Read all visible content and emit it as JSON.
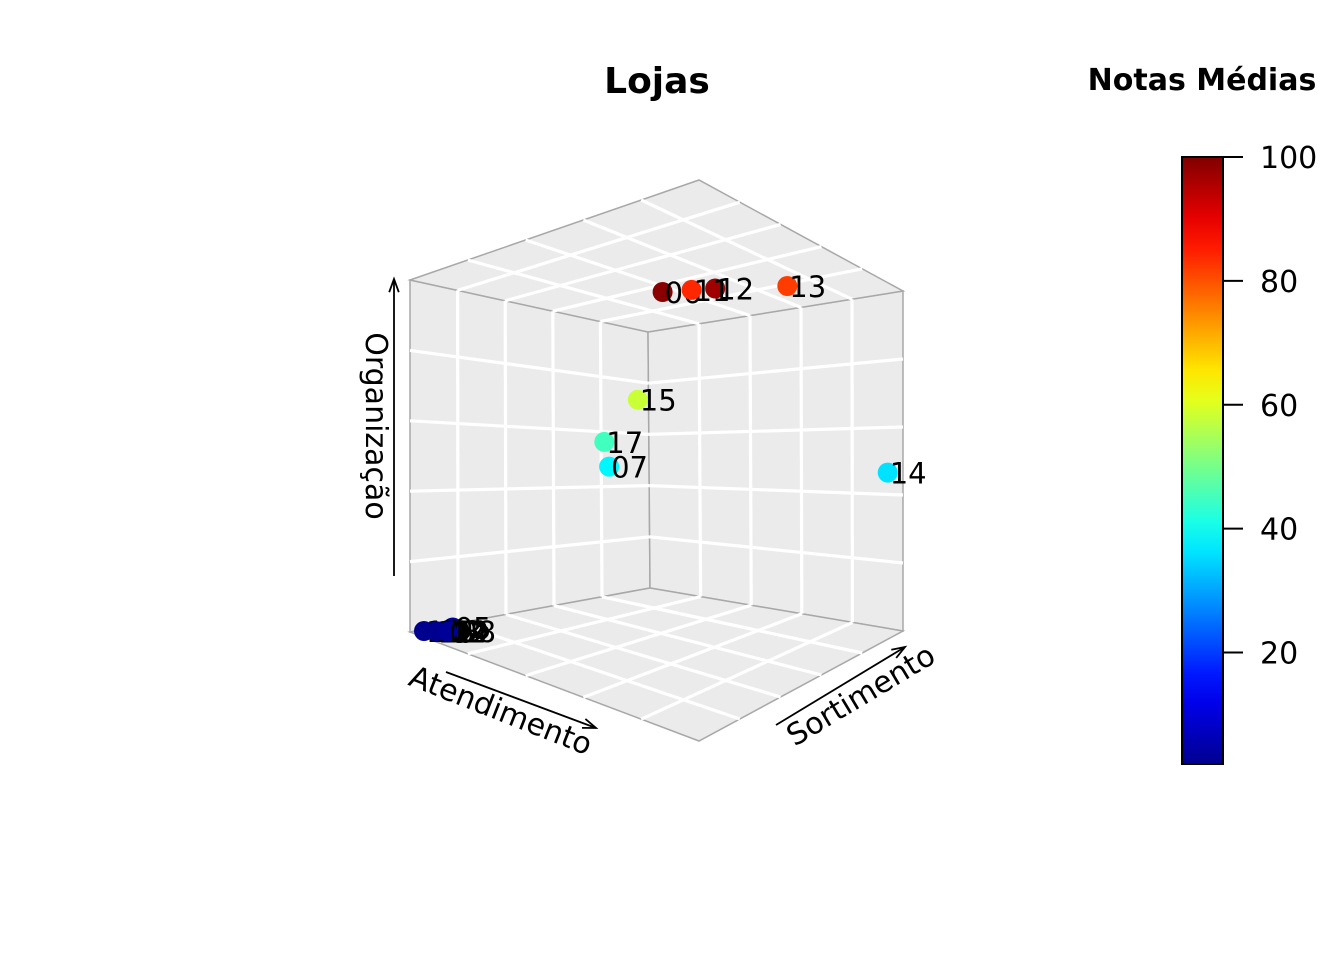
{
  "chart_data": {
    "type": "scatter",
    "title": "Lojas",
    "axes": {
      "x_label": "Atendimento",
      "y_label": "Sortimento",
      "z_label": "Organização"
    },
    "legend": {
      "title": "Notas Médias",
      "placement": "right",
      "min": 2,
      "max": 100,
      "ticks": [
        20,
        40,
        60,
        80,
        100
      ],
      "tick_labels": [
        "20",
        "40",
        "60",
        "80",
        "100"
      ],
      "colors": [
        "#00008f",
        "#0000ff",
        "#0080ff",
        "#00ffff",
        "#80ff80",
        "#ffff00",
        "#ff8000",
        "#ff0000",
        "#800000"
      ]
    },
    "grid": true,
    "points": [
      {
        "label": "06",
        "atendimento": 0.95,
        "sortimento": 0.05,
        "organizacao": 0.99,
        "nota": 99
      },
      {
        "label": "12",
        "atendimento": 0.95,
        "sortimento": 0.16,
        "organizacao": 1.0,
        "nota": 97
      },
      {
        "label": "11",
        "atendimento": 0.74,
        "sortimento": 0.21,
        "organizacao": 0.99,
        "nota": 84
      },
      {
        "label": "13",
        "atendimento": 0.0,
        "sortimento": 0.76,
        "organizacao": 0.98,
        "nota": 82
      },
      {
        "label": "15",
        "atendimento": 0.1,
        "sortimento": 0.4,
        "organizacao": 0.66,
        "nota": 58
      },
      {
        "label": "17",
        "atendimento": 0.1,
        "sortimento": 0.33,
        "organizacao": 0.54,
        "nota": 45
      },
      {
        "label": "07",
        "atendimento": 0.1,
        "sortimento": 0.34,
        "organizacao": 0.47,
        "nota": 38
      },
      {
        "label": "14",
        "atendimento": 0.0,
        "sortimento": 0.97,
        "organizacao": 0.45,
        "nota": 36
      },
      {
        "label": "05",
        "atendimento": 0.0,
        "sortimento": 0.06,
        "organizacao": 0.01,
        "nota": 4
      },
      {
        "label": "03",
        "atendimento": 0.0,
        "sortimento": 0.04,
        "organizacao": 0.0,
        "nota": 3
      },
      {
        "label": "08",
        "atendimento": 0.02,
        "sortimento": 0.06,
        "organizacao": 0.0,
        "nota": 3
      },
      {
        "label": "09",
        "atendimento": 0.01,
        "sortimento": 0.05,
        "organizacao": 0.0,
        "nota": 3
      },
      {
        "label": "01",
        "atendimento": 0.01,
        "sortimento": 0.02,
        "organizacao": 0.0,
        "nota": 3
      },
      {
        "label": "10",
        "atendimento": 0.0,
        "sortimento": 0.0,
        "organizacao": 0.0,
        "nota": 2
      },
      {
        "label": "04",
        "atendimento": 0.05,
        "sortimento": 0.03,
        "organizacao": 0.0,
        "nota": 3
      },
      {
        "label": "16",
        "atendimento": 0.03,
        "sortimento": 0.01,
        "organizacao": 0.0,
        "nota": 2
      },
      {
        "label": "02",
        "atendimento": 0.06,
        "sortimento": 0.02,
        "organizacao": 0.0,
        "nota": 3
      }
    ]
  }
}
